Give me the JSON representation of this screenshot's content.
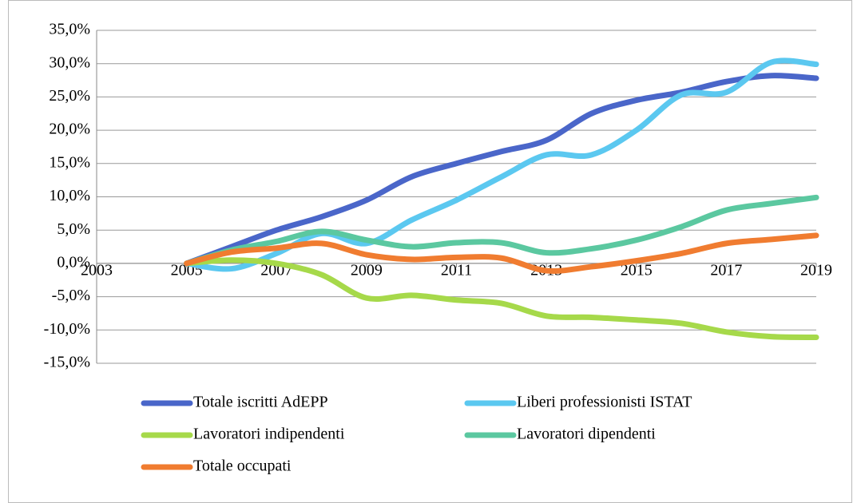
{
  "chart_data": {
    "type": "line",
    "x": [
      2005,
      2006,
      2007,
      2008,
      2009,
      2010,
      2011,
      2012,
      2013,
      2014,
      2015,
      2016,
      2017,
      2018,
      2019
    ],
    "series": [
      {
        "name": "Totale iscritti AdEPP",
        "color": "#4a66c9",
        "values": [
          0,
          2.5,
          5,
          7,
          9.5,
          13,
          15,
          16.8,
          18.5,
          22.5,
          24.5,
          25.7,
          27.3,
          28.2,
          27.8
        ]
      },
      {
        "name": "Liberi professionisti ISTAT",
        "color": "#5bc8f0",
        "values": [
          0,
          -0.8,
          1.5,
          4.5,
          3,
          6.5,
          9.5,
          13,
          16.3,
          16.3,
          20,
          25.3,
          25.7,
          30.2,
          29.9
        ]
      },
      {
        "name": "Lavoratori indipendenti",
        "color": "#a6d94a",
        "values": [
          0,
          0.5,
          0,
          -1.7,
          -5.2,
          -4.8,
          -5.5,
          -6,
          -7.9,
          -8.1,
          -8.5,
          -9,
          -10.3,
          -11,
          -11.1
        ]
      },
      {
        "name": "Lavoratori dipendenti",
        "color": "#5bc8a0",
        "values": [
          0,
          2,
          3.3,
          4.8,
          3.5,
          2.5,
          3.1,
          3.1,
          1.6,
          2.2,
          3.5,
          5.5,
          8,
          9,
          9.9
        ]
      },
      {
        "name": "Totale occupati",
        "color": "#f07c30",
        "values": [
          0,
          1.7,
          2.3,
          3,
          1.3,
          0.6,
          0.9,
          0.8,
          -1.1,
          -0.5,
          0.4,
          1.5,
          3,
          3.6,
          4.2
        ]
      }
    ],
    "xlim": [
      2003,
      2019
    ],
    "xticks": [
      2003,
      2005,
      2007,
      2009,
      2011,
      2013,
      2015,
      2017,
      2019
    ],
    "ylim": [
      -15,
      35
    ],
    "yticks": [
      {
        "value": -15,
        "label": "-15,0%"
      },
      {
        "value": -10,
        "label": "-10,0%"
      },
      {
        "value": -5,
        "label": "-5,0%"
      },
      {
        "value": 0,
        "label": "0,0%"
      },
      {
        "value": 5,
        "label": "5,0%"
      },
      {
        "value": 10,
        "label": "10,0%"
      },
      {
        "value": 15,
        "label": "15,0%"
      },
      {
        "value": 20,
        "label": "20,0%"
      },
      {
        "value": 25,
        "label": "25,0%"
      },
      {
        "value": 30,
        "label": "30,0%"
      },
      {
        "value": 35,
        "label": "35,0%"
      }
    ],
    "grid": true,
    "legend": "bottom"
  }
}
